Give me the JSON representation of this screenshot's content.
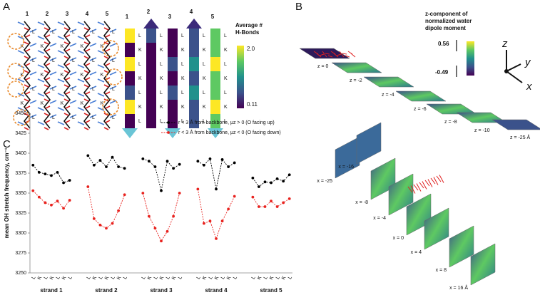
{
  "panel_labels": [
    "A",
    "B",
    "C"
  ],
  "panel_a": {
    "structure_strands": [
      "1",
      "2",
      "3",
      "4",
      "5"
    ],
    "structure_residues": [
      [
        "L",
        "K",
        "L",
        "K",
        "L",
        "K",
        "L"
      ],
      [
        "L",
        "K",
        "L",
        "K",
        "L",
        "K",
        "L"
      ],
      [
        "L",
        "K",
        "L",
        "K",
        "L",
        "K",
        "L"
      ],
      [
        "L",
        "K",
        "L",
        "K",
        "L",
        "K",
        "L"
      ],
      [
        "L",
        "K",
        "L",
        "K",
        "L",
        "K",
        "L"
      ]
    ],
    "topology_strands": [
      "1",
      "2",
      "3",
      "4",
      "5"
    ],
    "topology_residues": [
      [
        "L",
        "K",
        "L",
        "K",
        "L",
        "K",
        "L"
      ],
      [
        "L",
        "K",
        "L",
        "K",
        "L",
        "K",
        "L"
      ],
      [
        "L",
        "K",
        "L",
        "K",
        "L",
        "K",
        "L"
      ],
      [
        "L",
        "K",
        "L",
        "K",
        "L",
        "K",
        "L"
      ],
      [
        "L",
        "K",
        "L",
        "K",
        "L",
        "K",
        "L"
      ]
    ],
    "colorbar_title": [
      "Average #",
      "H-Bonds"
    ],
    "colorbar_max": "2.0",
    "colorbar_min": "0.11"
  },
  "panel_b": {
    "colorbar_title": [
      "z-component of",
      "normalized water",
      "dipole moment"
    ],
    "colorbar_max": "0.56",
    "colorbar_min": "-0.49",
    "axes": [
      "z",
      "y",
      "x"
    ],
    "z_slices": [
      "z = 0",
      "z = -2",
      "z = -4",
      "z = -6",
      "z = -8",
      "z = -10",
      "z = -25 Å"
    ],
    "x_slices": [
      "x = -25",
      "x = -16",
      "x = -8",
      "x = -4",
      "x = 0",
      "x = 4",
      "x = 8",
      "x = 16 Å"
    ]
  },
  "chart_data": {
    "type": "line",
    "y_label": "mean OH stretch frequency, cm⁻¹",
    "categories": [
      "L",
      "K",
      "L",
      "K",
      "L",
      "K",
      "L",
      null,
      null,
      "L",
      "K",
      "L",
      "K",
      "L",
      "K",
      "L",
      null,
      null,
      "L",
      "K",
      "L",
      "K",
      "L",
      "K",
      "L",
      null,
      null,
      "L",
      "K",
      "L",
      "K",
      "L",
      "K",
      "L",
      null,
      null,
      "L",
      "K",
      "L",
      "K",
      "L",
      "K",
      "L"
    ],
    "groups": [
      "strand 1",
      "strand 2",
      "strand 3",
      "strand 4",
      "strand 5"
    ],
    "series": [
      {
        "name": "r < 3 Å from backbone, μz > 0 (O facing up)",
        "color": "#000000",
        "values": [
          3385,
          3376,
          3374,
          3372,
          3376,
          3363,
          3366,
          null,
          null,
          3397,
          3385,
          3391,
          3383,
          3395,
          3383,
          3381,
          null,
          null,
          3393,
          3390,
          3383,
          3353,
          3390,
          3381,
          3386,
          null,
          null,
          3390,
          3385,
          3393,
          3355,
          3392,
          3383,
          3388,
          null,
          null,
          3369,
          3358,
          3364,
          3363,
          3368,
          3365,
          3373
        ]
      },
      {
        "name": "r < 3 Å from backbone, μz < 0 (O facing down)",
        "color": "#e8221e",
        "values": [
          3353,
          3345,
          3338,
          3335,
          3340,
          3331,
          3341,
          null,
          null,
          3358,
          3318,
          3310,
          3306,
          3312,
          3328,
          3348,
          null,
          null,
          3350,
          3321,
          3306,
          3290,
          3302,
          3321,
          3350,
          null,
          null,
          3355,
          3312,
          3315,
          3293,
          3315,
          3330,
          3346,
          null,
          null,
          3345,
          3333,
          3333,
          3340,
          3333,
          3338,
          3343
        ]
      }
    ],
    "ylim": [
      3250,
      3450
    ],
    "yticks": [
      3250,
      3275,
      3300,
      3325,
      3350,
      3375,
      3400,
      3425,
      3450
    ]
  }
}
